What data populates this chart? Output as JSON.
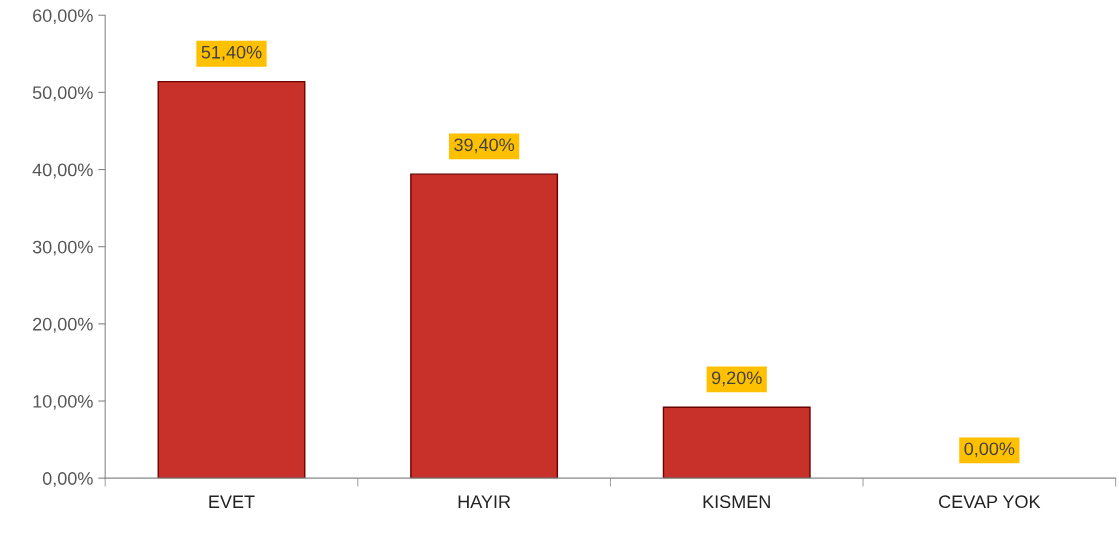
{
  "chart_data": {
    "type": "bar",
    "categories": [
      "EVET",
      "HAYIR",
      "KISMEN",
      "CEVAP YOK"
    ],
    "values": [
      51.4,
      39.4,
      9.2,
      0
    ],
    "color": "#c8302a",
    "value_labels": [
      "51,40%",
      "39,40%",
      "9,20%",
      "0,00%"
    ],
    "ylim": [
      0,
      60
    ],
    "yticks": [
      {
        "value": 0,
        "label": "0,00%"
      },
      {
        "value": 10,
        "label": "10,00%"
      },
      {
        "value": 20,
        "label": "20,00%"
      },
      {
        "value": 30,
        "label": "30,00%"
      },
      {
        "value": 40,
        "label": "40,00%"
      },
      {
        "value": 50,
        "label": "50,00%"
      },
      {
        "value": 60,
        "label": "60,00%"
      }
    ],
    "grid": false,
    "legend": false
  }
}
